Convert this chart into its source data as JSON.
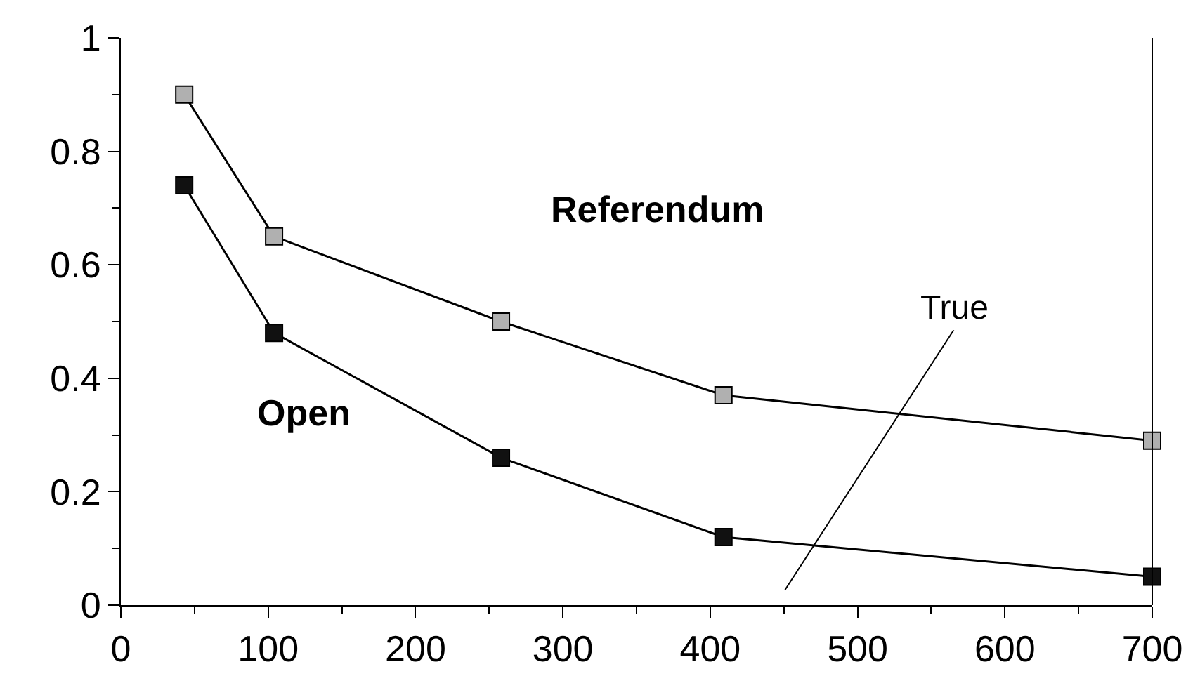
{
  "chart_data": {
    "type": "line",
    "x": [
      43,
      104,
      258,
      409,
      700
    ],
    "series": [
      {
        "name": "Referendum",
        "color": "#b0b0b0",
        "values": [
          0.9,
          0.65,
          0.5,
          0.37,
          0.29
        ]
      },
      {
        "name": "Open",
        "color": "#111111",
        "values": [
          0.74,
          0.48,
          0.26,
          0.12,
          0.05
        ]
      }
    ],
    "xlim": [
      0,
      700
    ],
    "xticks": [
      0,
      100,
      200,
      300,
      400,
      500,
      600,
      700
    ],
    "ylim": [
      0,
      1
    ],
    "yticks": [
      0,
      0.2,
      0.4,
      0.6,
      0.8,
      1
    ],
    "annotations": [
      "True"
    ],
    "legend": false,
    "marker": "square",
    "line_style": "solid"
  }
}
